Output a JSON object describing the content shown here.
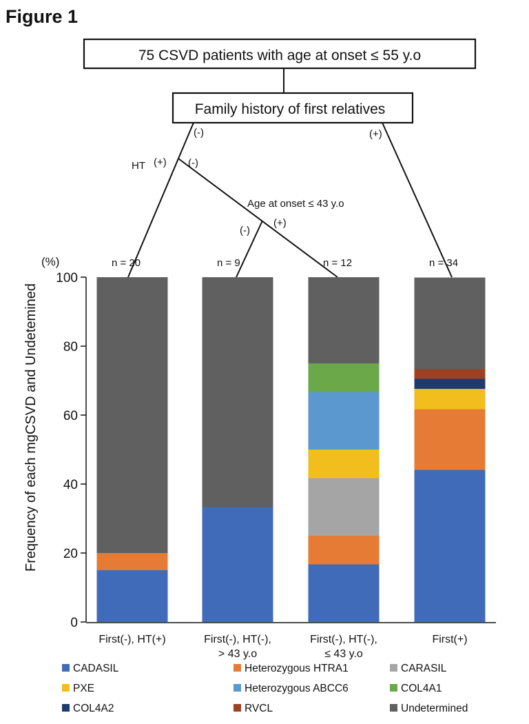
{
  "figure_label": "Figure 1",
  "flow": {
    "top_box": "75 CSVD patients with age at onset ≤ 55 y.o",
    "family_box": "Family history of first relatives",
    "family_neg": "(-)",
    "family_pos": "(+)",
    "ht_label": "HT",
    "ht_pos": "(+)",
    "ht_neg": "(-)",
    "age_label": "Age at onset ≤ 43 y.o",
    "age_neg": "(-)",
    "age_pos": "(+)"
  },
  "colors": {
    "CADASIL": "#3f6bb8",
    "Heterozygous HTRA1": "#e57b34",
    "CARASIL": "#a5a5a5",
    "PXE": "#f2be1e",
    "Heterozygous ABCC6": "#5b98cf",
    "COL4A1": "#6aa84a",
    "COL4A2": "#1f3a6e",
    "RVCL": "#9c4224",
    "Undetermined": "#606060"
  },
  "chart_data": {
    "type": "bar",
    "stacked": true,
    "ylabel": "Frequency of each mgCSVD and Undetemined",
    "yunit": "(%)",
    "ylim": [
      0,
      100
    ],
    "yticks": [
      "0",
      "20",
      "40",
      "60",
      "80",
      "100"
    ],
    "categories": [
      {
        "line1": "First(-), HT(+)",
        "line2": "",
        "n": "n = 20"
      },
      {
        "line1": "First(-), HT(-),",
        "line2": "> 43 y.o",
        "n": "n = 9"
      },
      {
        "line1": "First(-), HT(-),",
        "line2": "≤ 43 y.o",
        "n": "n = 12"
      },
      {
        "line1": "First(+)",
        "line2": "",
        "n": "n = 34"
      }
    ],
    "series": [
      {
        "name": "CADASIL",
        "values": [
          15,
          33.3,
          16.7,
          44.1
        ]
      },
      {
        "name": "Heterozygous HTRA1",
        "values": [
          5,
          0,
          8.3,
          17.6
        ]
      },
      {
        "name": "CARASIL",
        "values": [
          0,
          0,
          16.7,
          0
        ]
      },
      {
        "name": "PXE",
        "values": [
          0,
          0,
          8.3,
          5.9
        ]
      },
      {
        "name": "Heterozygous ABCC6",
        "values": [
          0,
          0,
          16.7,
          0
        ]
      },
      {
        "name": "COL4A1",
        "values": [
          0,
          0,
          8.3,
          0
        ]
      },
      {
        "name": "COL4A2",
        "values": [
          0,
          0,
          0,
          2.9
        ]
      },
      {
        "name": "RVCL",
        "values": [
          0,
          0,
          0,
          2.9
        ]
      },
      {
        "name": "Undetermined",
        "values": [
          80,
          66.7,
          25,
          26.5
        ]
      }
    ],
    "legend": [
      "CADASIL",
      "Heterozygous HTRA1",
      "CARASIL",
      "PXE",
      "Heterozygous ABCC6",
      "COL4A1",
      "COL4A2",
      "RVCL",
      "Undetermined"
    ]
  }
}
